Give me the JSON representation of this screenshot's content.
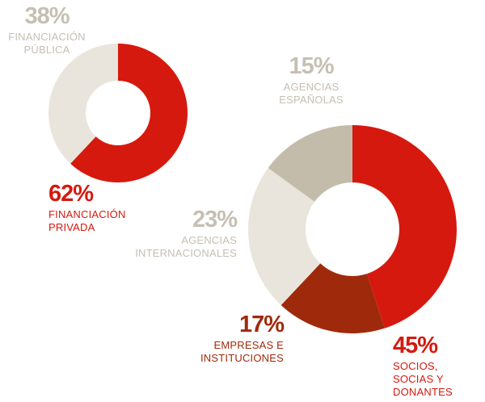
{
  "chart_data": [
    {
      "type": "pie",
      "categories": [
        "FINANCIACIÓN PRIVADA",
        "FINANCIACIÓN PÚBLICA"
      ],
      "values": [
        62,
        38
      ],
      "value_labels": [
        "62%",
        "38%"
      ],
      "colors": [
        "#d6190e",
        "#e9e5dc"
      ],
      "label_colors": [
        "#d6190e",
        "#c6bfb2"
      ]
    },
    {
      "type": "pie",
      "categories": [
        "SOCIOS, SOCIAS Y DONANTES",
        "EMPRESAS E INSTITUCIONES",
        "AGENCIAS INTERNACIONALES",
        "AGENCIAS ESPAÑOLAS"
      ],
      "values": [
        45,
        17,
        23,
        15
      ],
      "value_labels": [
        "45%",
        "17%",
        "23%",
        "15%"
      ],
      "colors": [
        "#d6190e",
        "#9f2a0b",
        "#e9e5dc",
        "#c4bcab"
      ],
      "label_colors": [
        "#d6190e",
        "#9f2a0b",
        "#c6bfb2",
        "#c6bfb2"
      ]
    }
  ]
}
